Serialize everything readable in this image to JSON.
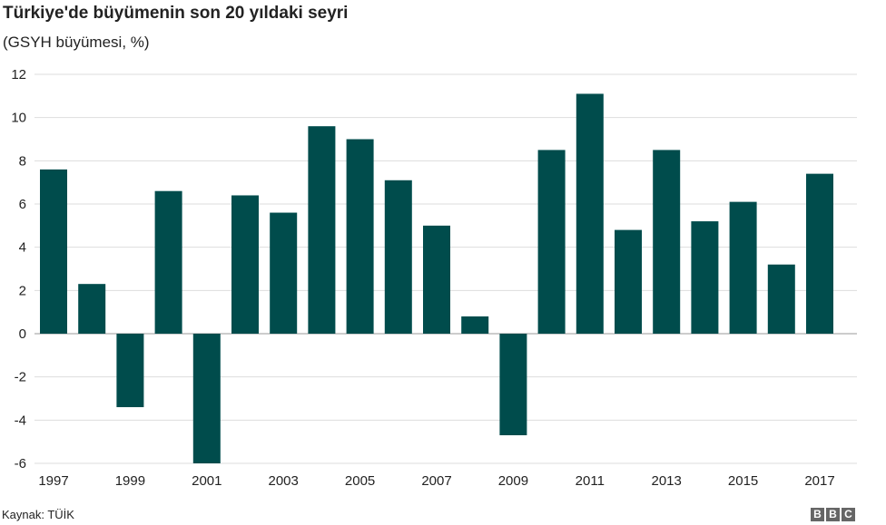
{
  "title": "Türkiye'de büyümenin son 20 yıldaki seyri",
  "subtitle": "(GSYH büyümesi, %)",
  "source": "Kaynak: TÜİK",
  "logo": {
    "letters": [
      "B",
      "B",
      "C"
    ]
  },
  "colors": {
    "bar": "#004c4c",
    "grid": "#dddddd",
    "baseline": "#999999",
    "text": "#222222"
  },
  "chart_data": {
    "type": "bar",
    "title": "Türkiye'de büyümenin son 20 yıldaki seyri",
    "subtitle": "(GSYH büyümesi, %)",
    "xlabel": "",
    "ylabel": "",
    "categories": [
      "1997",
      "1998",
      "1999",
      "2000",
      "2001",
      "2002",
      "2003",
      "2004",
      "2005",
      "2006",
      "2007",
      "2008",
      "2009",
      "2010",
      "2011",
      "2012",
      "2013",
      "2014",
      "2015",
      "2016",
      "2017"
    ],
    "values": [
      7.6,
      2.3,
      -3.4,
      6.6,
      -6.0,
      6.4,
      5.6,
      9.6,
      9.0,
      7.1,
      5.0,
      0.8,
      -4.7,
      8.5,
      11.1,
      4.8,
      8.5,
      5.2,
      6.1,
      3.2,
      7.4
    ],
    "x_tick_labels": [
      "1997",
      "1999",
      "2001",
      "2003",
      "2005",
      "2007",
      "2009",
      "2011",
      "2013",
      "2015",
      "2017"
    ],
    "y_ticks": [
      12,
      10,
      8,
      6,
      4,
      2,
      0,
      -2,
      -4,
      -6
    ],
    "ylim": [
      -6,
      12
    ],
    "grid": true,
    "legend": "none"
  }
}
